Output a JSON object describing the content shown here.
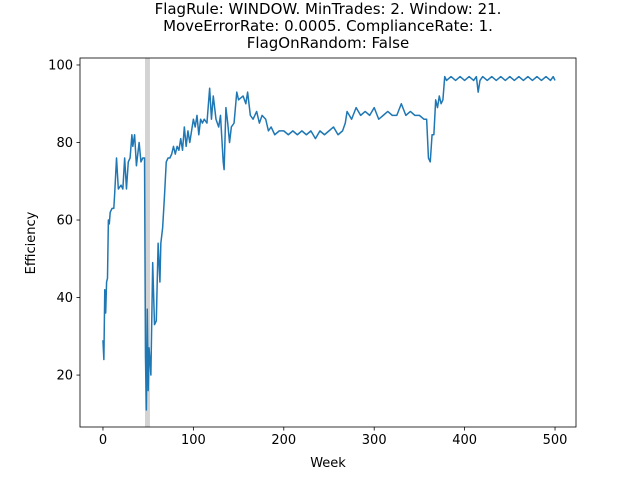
{
  "chart_data": {
    "type": "line",
    "title": "FlagRule: WINDOW. MinTrades: 2. Window: 21.\nMoveErrorRate: 0.0005. ComplianceRate: 1.\nFlagOnRandom: False",
    "xlabel": "Week",
    "ylabel": "Efficiency",
    "color": "#1f77b4",
    "highlight": {
      "x0": 46.5,
      "x1": 52,
      "color": "#d3d3d3"
    },
    "x": [
      0,
      1,
      2,
      3,
      4,
      5,
      6,
      7,
      8,
      10,
      12,
      13,
      15,
      17,
      20,
      22,
      24,
      26,
      28,
      30,
      32,
      33,
      35,
      37,
      38,
      40,
      42,
      44,
      46,
      47,
      48,
      49,
      50,
      51,
      53,
      55,
      57,
      59,
      61,
      63,
      64,
      66,
      68,
      70,
      72,
      74,
      76,
      78,
      80,
      82,
      84,
      86,
      88,
      90,
      92,
      94,
      96,
      98,
      100,
      102,
      104,
      106,
      108,
      110,
      112,
      115,
      118,
      120,
      122,
      125,
      128,
      130,
      133,
      134,
      136,
      138,
      140,
      142,
      145,
      148,
      150,
      155,
      158,
      160,
      163,
      166,
      170,
      173,
      176,
      180,
      183,
      186,
      190,
      195,
      200,
      205,
      210,
      215,
      220,
      225,
      230,
      235,
      240,
      245,
      250,
      255,
      260,
      265,
      268,
      270,
      275,
      280,
      285,
      290,
      295,
      300,
      305,
      310,
      315,
      320,
      325,
      330,
      335,
      340,
      345,
      350,
      355,
      358,
      360,
      362,
      364,
      366,
      368,
      370,
      372,
      374,
      376,
      378,
      380,
      385,
      390,
      395,
      400,
      405,
      410,
      413,
      415,
      417,
      420,
      425,
      430,
      435,
      440,
      445,
      450,
      455,
      460,
      465,
      470,
      475,
      480,
      485,
      490,
      495,
      498,
      500
    ],
    "values": [
      29,
      24,
      42,
      36,
      44,
      45,
      60,
      59,
      62,
      63,
      63,
      67,
      76,
      68,
      69,
      68,
      76,
      68,
      75,
      76,
      82,
      79,
      82,
      74,
      76,
      80,
      75,
      76,
      76,
      25,
      11,
      37,
      16,
      27,
      20,
      49,
      33,
      34,
      54,
      44,
      54,
      58,
      66,
      75,
      76,
      76,
      77,
      79,
      77,
      79,
      78,
      81,
      78,
      84,
      79,
      83,
      80,
      83,
      86,
      84,
      87,
      82,
      86,
      85,
      86,
      85,
      94,
      86,
      92,
      86,
      84,
      87,
      75,
      73,
      89,
      85,
      80,
      84,
      85,
      93,
      91,
      92,
      90,
      93,
      87,
      86,
      88,
      85,
      87,
      86,
      83,
      84,
      82,
      83,
      83,
      82,
      83,
      82,
      83,
      82,
      83,
      81,
      83,
      82,
      83,
      84,
      82,
      83,
      85,
      88,
      86,
      89,
      87,
      88,
      87,
      89,
      86,
      87,
      88,
      87,
      87,
      90,
      87,
      88,
      87,
      87,
      86,
      86,
      76,
      75,
      82,
      82,
      91,
      89,
      92,
      90,
      91,
      97,
      96,
      97,
      96,
      97,
      96,
      97,
      96,
      97,
      93,
      96,
      97,
      96,
      97,
      96,
      97,
      96,
      97,
      96,
      97,
      96,
      97,
      96,
      97,
      96,
      97,
      96,
      97,
      96
    ],
    "xlim": [
      -25.4,
      523.2
    ],
    "ylim": [
      6.6,
      101.8
    ],
    "xticks": [
      0,
      100,
      200,
      300,
      400,
      500
    ],
    "yticks": [
      20,
      40,
      60,
      80,
      100
    ]
  }
}
